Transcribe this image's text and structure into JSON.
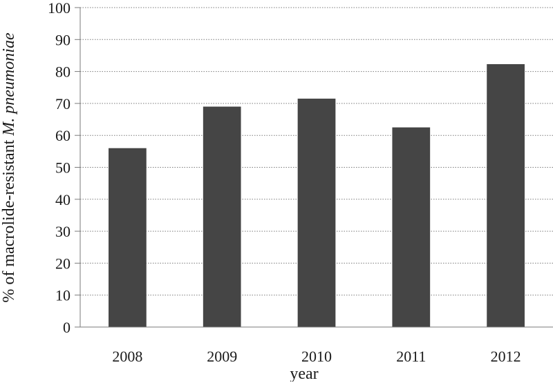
{
  "chart_data": {
    "type": "bar",
    "categories": [
      "2008",
      "2009",
      "2010",
      "2011",
      "2012"
    ],
    "values": [
      56,
      69,
      71.5,
      62.5,
      82.3
    ],
    "title": "",
    "xlabel": "year",
    "ylabel": "% of macrolide-resistant M. pneumoniae",
    "ylabel_parts": {
      "plain": "% of macrolide-resistant ",
      "italic": "M. pneumoniae"
    },
    "ylim": [
      0,
      100
    ],
    "yticks": [
      0,
      10,
      20,
      30,
      40,
      50,
      60,
      70,
      80,
      90,
      100
    ],
    "grid": true,
    "legend": "none",
    "colors": {
      "bar": "#454545",
      "grid": "#7a7a7a",
      "axis": "#7a7a7a",
      "text": "#1a1a1a"
    }
  }
}
